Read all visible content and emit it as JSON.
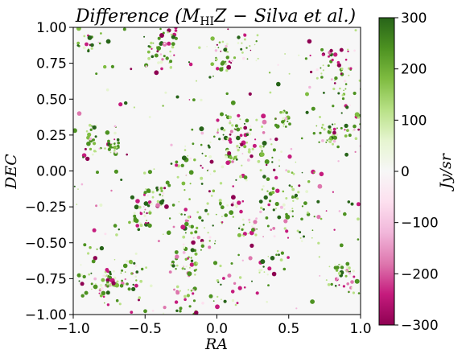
{
  "chart_data": {
    "type": "heatmap",
    "title_parts": {
      "pre": "Difference (",
      "m": "M",
      "sub": "HI",
      "z": "Z",
      "minus": "−",
      "post": "Silva et al.)"
    },
    "xlabel": "RA",
    "ylabel": "DEC",
    "xlim": [
      -1.0,
      1.0
    ],
    "ylim": [
      -1.0,
      1.0
    ],
    "x_ticks": [
      "−1.0",
      "−0.5",
      "0.0",
      "0.5",
      "1.0"
    ],
    "y_ticks": [
      "−1.00",
      "−0.75",
      "−0.50",
      "−0.25",
      "0.00",
      "0.25",
      "0.50",
      "0.75",
      "1.00"
    ],
    "colorbar": {
      "label": "Jy/sr",
      "range": [
        -300,
        300
      ],
      "ticks": [
        "300",
        "200",
        "100",
        "0",
        "−100",
        "−200",
        "−300"
      ],
      "colormap": "PiYG",
      "stops": [
        "#8e0152",
        "#c51b7d",
        "#de77ae",
        "#f1b6da",
        "#fde0ef",
        "#f7f7f7",
        "#e6f5d0",
        "#b8e186",
        "#7fbc41",
        "#4d9221",
        "#276419"
      ]
    },
    "background_color": "#f7f7f7",
    "grid": false,
    "description_note_hidden": ""
  }
}
